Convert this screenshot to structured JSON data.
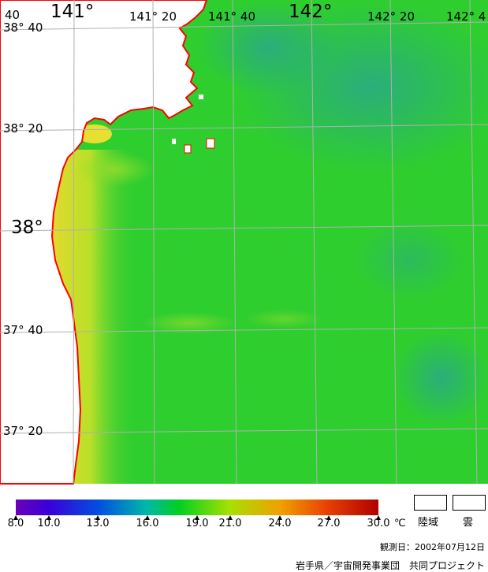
{
  "map": {
    "lat_labels": [
      {
        "text": "38° 40",
        "lat": "38-40"
      },
      {
        "text": "38° 20",
        "lat": "38-20"
      },
      {
        "text": "38°",
        "lat": "38-00"
      },
      {
        "text": "37° 40",
        "lat": "37-40"
      },
      {
        "text": "37° 20",
        "lat": "37-20"
      }
    ],
    "lon_labels": [
      {
        "text": "40",
        "lon": "140-40"
      },
      {
        "text": "141°",
        "lon": "141-00"
      },
      {
        "text": "141° 20",
        "lon": "141-20"
      },
      {
        "text": "141° 40",
        "lon": "141-40"
      },
      {
        "text": "142°",
        "lon": "142-00"
      },
      {
        "text": "142° 20",
        "lon": "142-20"
      },
      {
        "text": "142° 4",
        "lon": "142-40"
      }
    ],
    "colors": {
      "grid": "#b0b0b0",
      "coastline": "#ff0000",
      "land": "#ffffff",
      "sea_base": "#2fce2f"
    }
  },
  "legend": {
    "ticks": [
      "8.0",
      "10.0",
      "13.0",
      "16.0",
      "19.0",
      "21.0",
      "24.0",
      "27.0",
      "30.0"
    ],
    "unit": "℃",
    "range": [
      8.0,
      30.0
    ],
    "land_label": "陸域",
    "cloud_label": "雲"
  },
  "footer": {
    "observation_date": "観測日：2002年07月12日",
    "credit": "岩手県／宇宙開発事業団　共同プロジェクト"
  }
}
